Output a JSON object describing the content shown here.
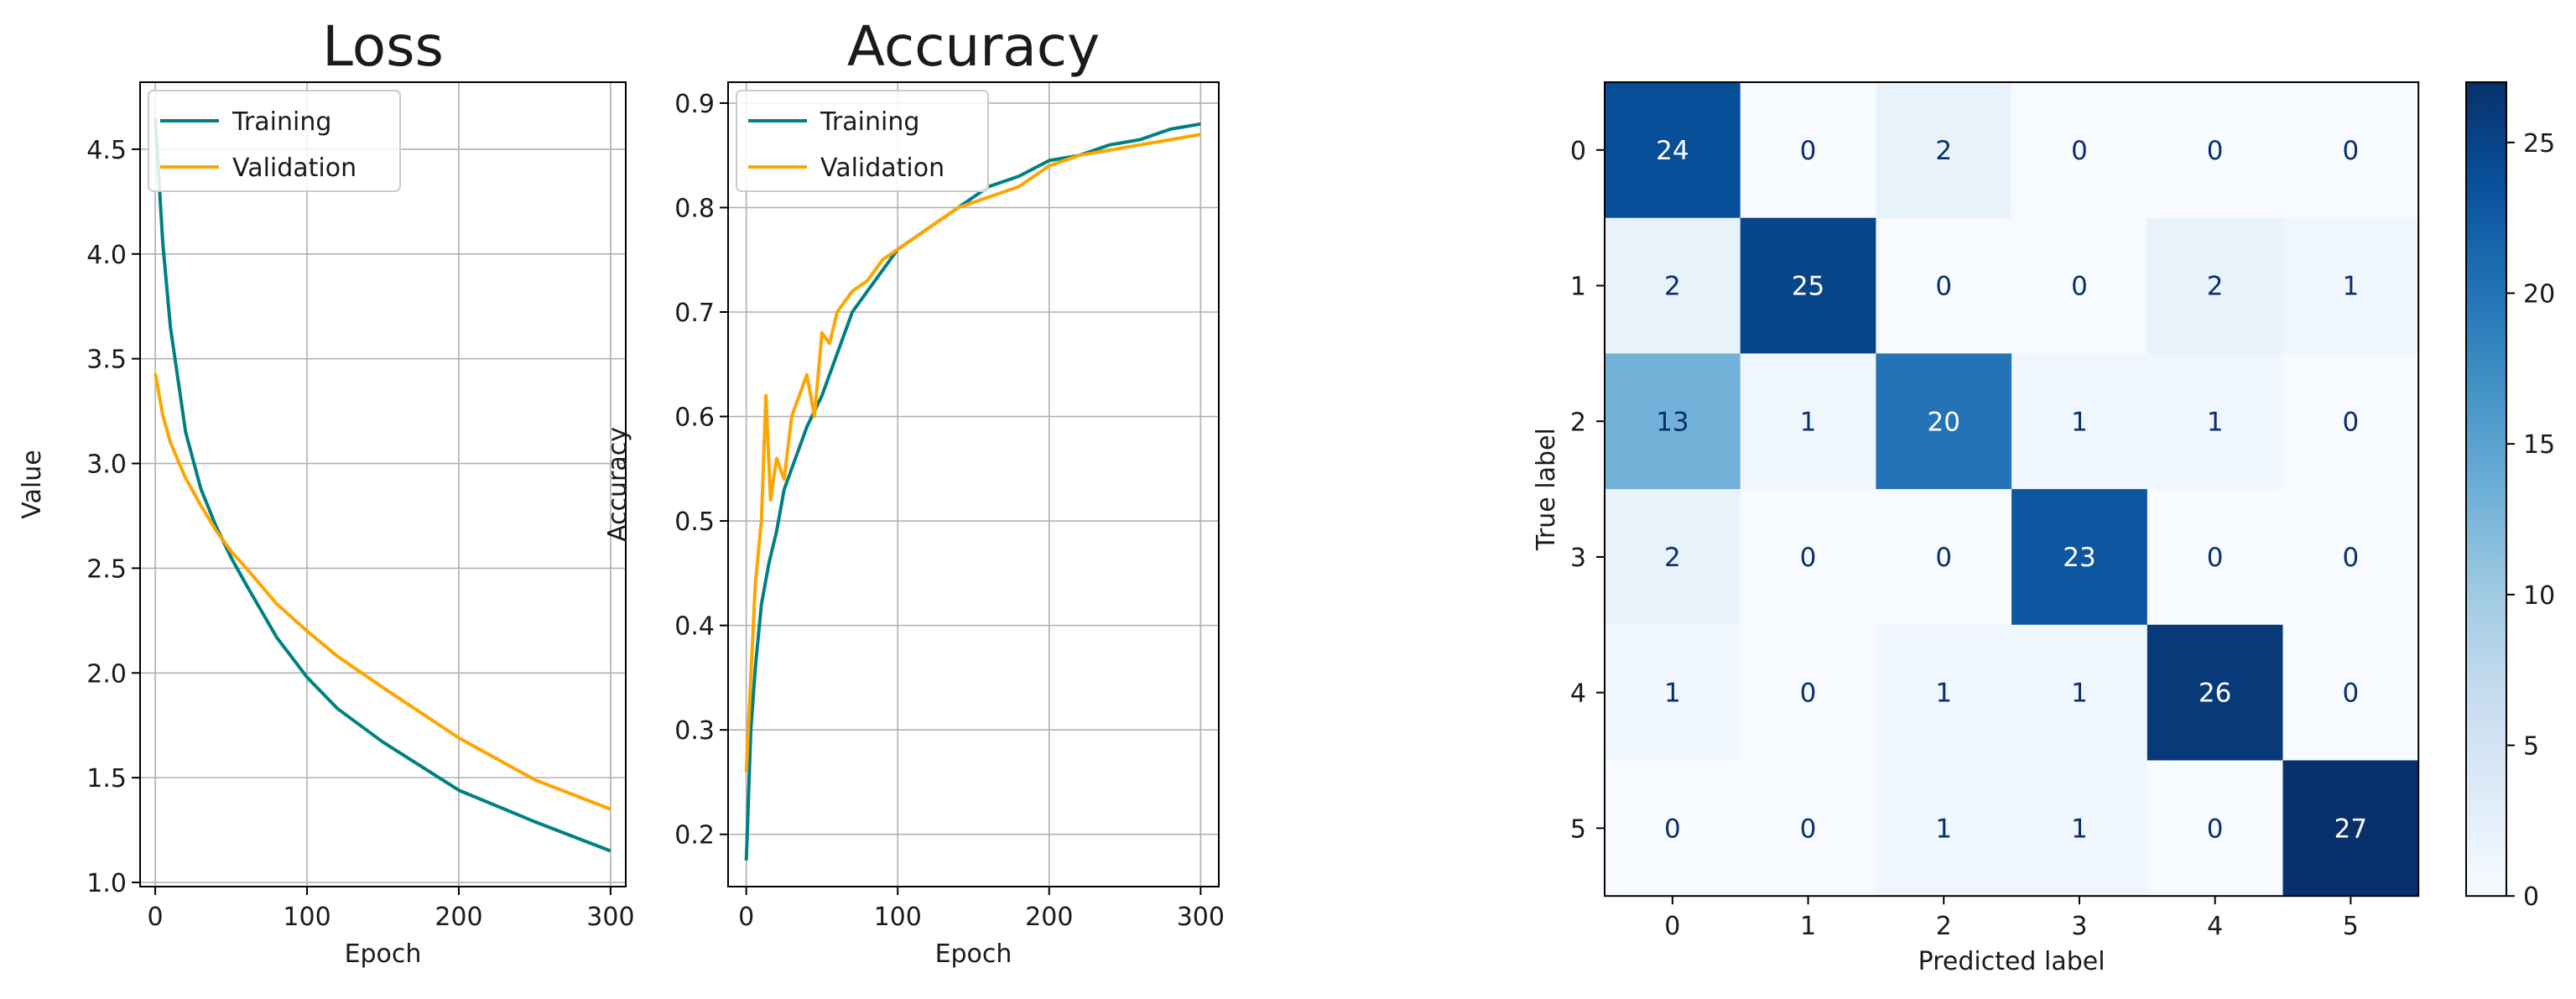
{
  "chart_data": [
    {
      "type": "line",
      "title": "Loss",
      "xlabel": "Epoch",
      "ylabel": "Value",
      "xlim": [
        -10,
        310
      ],
      "ylim": [
        0.98,
        4.82
      ],
      "xticks": [
        0,
        100,
        200,
        300
      ],
      "yticks": [
        1.0,
        1.5,
        2.0,
        2.5,
        3.0,
        3.5,
        4.0,
        4.5
      ],
      "grid": true,
      "legend_position": "upper-left",
      "series": [
        {
          "name": "Training",
          "color": "#008080",
          "x": [
            0,
            5,
            10,
            20,
            30,
            40,
            50,
            60,
            80,
            100,
            120,
            150,
            200,
            250,
            300
          ],
          "y": [
            4.65,
            4.05,
            3.65,
            3.15,
            2.88,
            2.7,
            2.55,
            2.42,
            2.17,
            1.98,
            1.83,
            1.67,
            1.44,
            1.29,
            1.15
          ]
        },
        {
          "name": "Validation",
          "color": "#ffa500",
          "x": [
            0,
            5,
            10,
            20,
            30,
            40,
            50,
            60,
            80,
            100,
            120,
            150,
            200,
            250,
            300
          ],
          "y": [
            3.43,
            3.23,
            3.1,
            2.93,
            2.8,
            2.68,
            2.58,
            2.5,
            2.33,
            2.2,
            2.08,
            1.93,
            1.69,
            1.49,
            1.35
          ]
        }
      ]
    },
    {
      "type": "line",
      "title": "Accuracy",
      "xlabel": "Epoch",
      "ylabel": "Accuracy",
      "xlim": [
        -12,
        312
      ],
      "ylim": [
        0.15,
        0.92
      ],
      "xticks": [
        0,
        100,
        200,
        300
      ],
      "yticks": [
        0.2,
        0.3,
        0.4,
        0.5,
        0.6,
        0.7,
        0.8,
        0.9
      ],
      "grid": true,
      "legend_position": "upper-left",
      "series": [
        {
          "name": "Training",
          "color": "#008080",
          "x": [
            0,
            3,
            6,
            10,
            15,
            20,
            25,
            30,
            40,
            50,
            60,
            70,
            80,
            90,
            100,
            110,
            120,
            140,
            160,
            180,
            200,
            220,
            240,
            260,
            280,
            300
          ],
          "y": [
            0.175,
            0.3,
            0.36,
            0.42,
            0.46,
            0.49,
            0.53,
            0.55,
            0.59,
            0.62,
            0.66,
            0.7,
            0.72,
            0.74,
            0.76,
            0.77,
            0.78,
            0.8,
            0.82,
            0.83,
            0.845,
            0.85,
            0.86,
            0.865,
            0.875,
            0.88
          ]
        },
        {
          "name": "Validation",
          "color": "#ffa500",
          "x": [
            0,
            3,
            6,
            10,
            13,
            16,
            20,
            25,
            30,
            35,
            40,
            45,
            50,
            55,
            60,
            70,
            80,
            90,
            100,
            110,
            120,
            140,
            160,
            180,
            200,
            220,
            240,
            260,
            280,
            300
          ],
          "y": [
            0.26,
            0.35,
            0.44,
            0.5,
            0.62,
            0.52,
            0.56,
            0.54,
            0.6,
            0.62,
            0.64,
            0.6,
            0.68,
            0.67,
            0.7,
            0.72,
            0.73,
            0.75,
            0.76,
            0.77,
            0.78,
            0.8,
            0.81,
            0.82,
            0.84,
            0.85,
            0.855,
            0.86,
            0.865,
            0.87
          ]
        }
      ]
    },
    {
      "type": "heatmap",
      "xlabel": "Predicted label",
      "ylabel": "True label",
      "x_categories": [
        "0",
        "1",
        "2",
        "3",
        "4",
        "5"
      ],
      "y_categories": [
        "0",
        "1",
        "2",
        "3",
        "4",
        "5"
      ],
      "matrix": [
        [
          24,
          0,
          2,
          0,
          0,
          0
        ],
        [
          2,
          25,
          0,
          0,
          2,
          1
        ],
        [
          13,
          1,
          20,
          1,
          1,
          0
        ],
        [
          2,
          0,
          0,
          23,
          0,
          0
        ],
        [
          1,
          0,
          1,
          1,
          26,
          0
        ],
        [
          0,
          0,
          1,
          1,
          0,
          27
        ]
      ],
      "colormap": "Blues",
      "vmin": 0,
      "vmax": 27,
      "colorbar_ticks": [
        0,
        5,
        10,
        15,
        20,
        25
      ]
    }
  ]
}
